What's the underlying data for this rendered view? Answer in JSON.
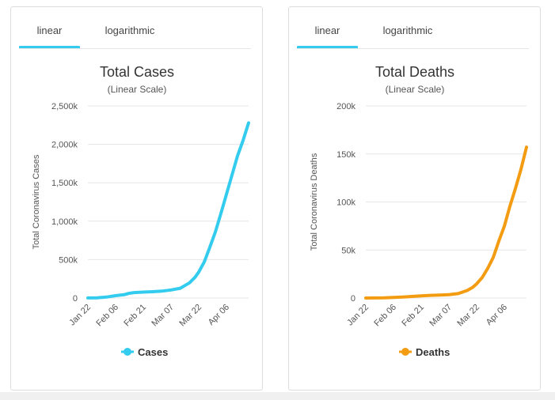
{
  "tabs": {
    "linear": "linear",
    "logarithmic": "logarithmic"
  },
  "chart_data": [
    {
      "type": "line",
      "title": "Total Cases",
      "subtitle": "(Linear Scale)",
      "ylabel": "Total Coronavirus Cases",
      "xlabel": "",
      "ylim": [
        0,
        2500000
      ],
      "yticks": [
        0,
        500000,
        1000000,
        1500000,
        2000000,
        2500000
      ],
      "ytick_labels": [
        "0",
        "500k",
        "1,000k",
        "1,500k",
        "2,000k",
        "2,500k"
      ],
      "xticks": [
        "Jan 22",
        "Feb 06",
        "Feb 21",
        "Mar 07",
        "Mar 22",
        "Apr 06"
      ],
      "x": [
        "Jan 22",
        "Jan 27",
        "Feb 01",
        "Feb 06",
        "Feb 11",
        "Feb 13",
        "Feb 16",
        "Feb 21",
        "Feb 26",
        "Mar 02",
        "Mar 07",
        "Mar 12",
        "Mar 17",
        "Mar 20",
        "Mar 22",
        "Mar 25",
        "Mar 28",
        "Mar 31",
        "Apr 03",
        "Apr 06",
        "Apr 09",
        "Apr 12",
        "Apr 15",
        "Apr 18"
      ],
      "series": [
        {
          "name": "Cases",
          "color": "#33ccee",
          "values": [
            600,
            3000,
            12000,
            31000,
            45000,
            60000,
            71000,
            77000,
            82000,
            90000,
            105000,
            128000,
            198000,
            270000,
            337000,
            470000,
            660000,
            860000,
            1100000,
            1350000,
            1600000,
            1850000,
            2050000,
            2280000
          ]
        }
      ],
      "legend": "bottom-center",
      "grid": true
    },
    {
      "type": "line",
      "title": "Total Deaths",
      "subtitle": "(Linear Scale)",
      "ylabel": "Total Coronavirus Deaths",
      "xlabel": "",
      "ylim": [
        0,
        200000
      ],
      "yticks": [
        0,
        50000,
        100000,
        150000,
        200000
      ],
      "ytick_labels": [
        "0",
        "50k",
        "100k",
        "150k",
        "200k"
      ],
      "xticks": [
        "Jan 22",
        "Feb 06",
        "Feb 21",
        "Mar 07",
        "Mar 22",
        "Apr 06"
      ],
      "x": [
        "Jan 22",
        "Jan 27",
        "Feb 01",
        "Feb 06",
        "Feb 11",
        "Feb 16",
        "Feb 21",
        "Feb 26",
        "Mar 02",
        "Mar 07",
        "Mar 12",
        "Mar 17",
        "Mar 20",
        "Mar 22",
        "Mar 25",
        "Mar 28",
        "Mar 31",
        "Apr 03",
        "Apr 06",
        "Apr 09",
        "Apr 12",
        "Apr 15",
        "Apr 18"
      ],
      "series": [
        {
          "name": "Deaths",
          "color": "#f39c12",
          "values": [
            17,
            80,
            260,
            640,
            1100,
            1670,
            2250,
            2760,
            3100,
            3550,
            4600,
            7900,
            11300,
            14700,
            21300,
            30900,
            42300,
            59200,
            74700,
            95500,
            114000,
            134000,
            157000
          ]
        }
      ],
      "legend": "bottom-center",
      "grid": true
    }
  ]
}
